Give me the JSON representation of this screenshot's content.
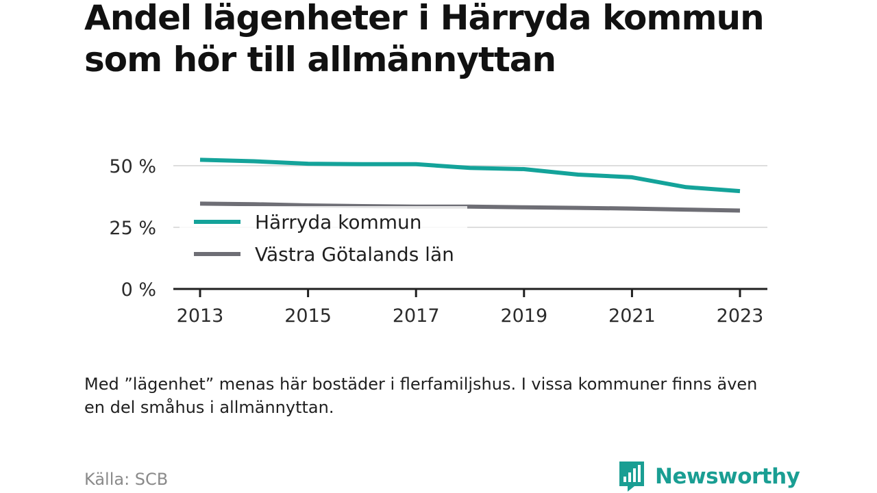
{
  "title": "Andel lägenheter i Härryda kommun som hör till allmännyttan",
  "note": "Med ”lägenhet” menas här bostäder i flerfamiljshus. I vissa kommuner finns även en del småhus i allmännyttan.",
  "source": "Källa: SCB",
  "brand": {
    "name": "Newsworthy",
    "icon": "newsworthy-logo-icon",
    "color": "#1a9e93"
  },
  "chart_data": {
    "type": "line",
    "title": "Andel lägenheter i Härryda kommun som hör till allmännyttan",
    "xlabel": "",
    "ylabel": "",
    "x": [
      2013,
      2014,
      2015,
      2016,
      2017,
      2018,
      2019,
      2020,
      2021,
      2022,
      2023
    ],
    "ylim": [
      0,
      50
    ],
    "y_ticks": [
      0,
      25,
      50
    ],
    "y_tick_labels": [
      "0 %",
      "25 %",
      "50 %"
    ],
    "x_ticks": [
      2013,
      2015,
      2017,
      2019,
      2021,
      2023
    ],
    "x_tick_labels": [
      "2013",
      "2015",
      "2017",
      "2019",
      "2021",
      "2023"
    ],
    "grid": true,
    "legend_position": "left",
    "series": [
      {
        "name": "Härryda kommun",
        "color": "#14a39a",
        "values": [
          52.4,
          51.8,
          50.8,
          50.6,
          50.6,
          49.1,
          48.6,
          46.4,
          45.3,
          41.3,
          39.7
        ]
      },
      {
        "name": "Västra Götalands län",
        "color": "#6e6e75",
        "values": [
          34.6,
          34.4,
          33.9,
          33.6,
          33.4,
          33.4,
          33.1,
          32.9,
          32.6,
          32.2,
          31.8
        ]
      }
    ]
  }
}
